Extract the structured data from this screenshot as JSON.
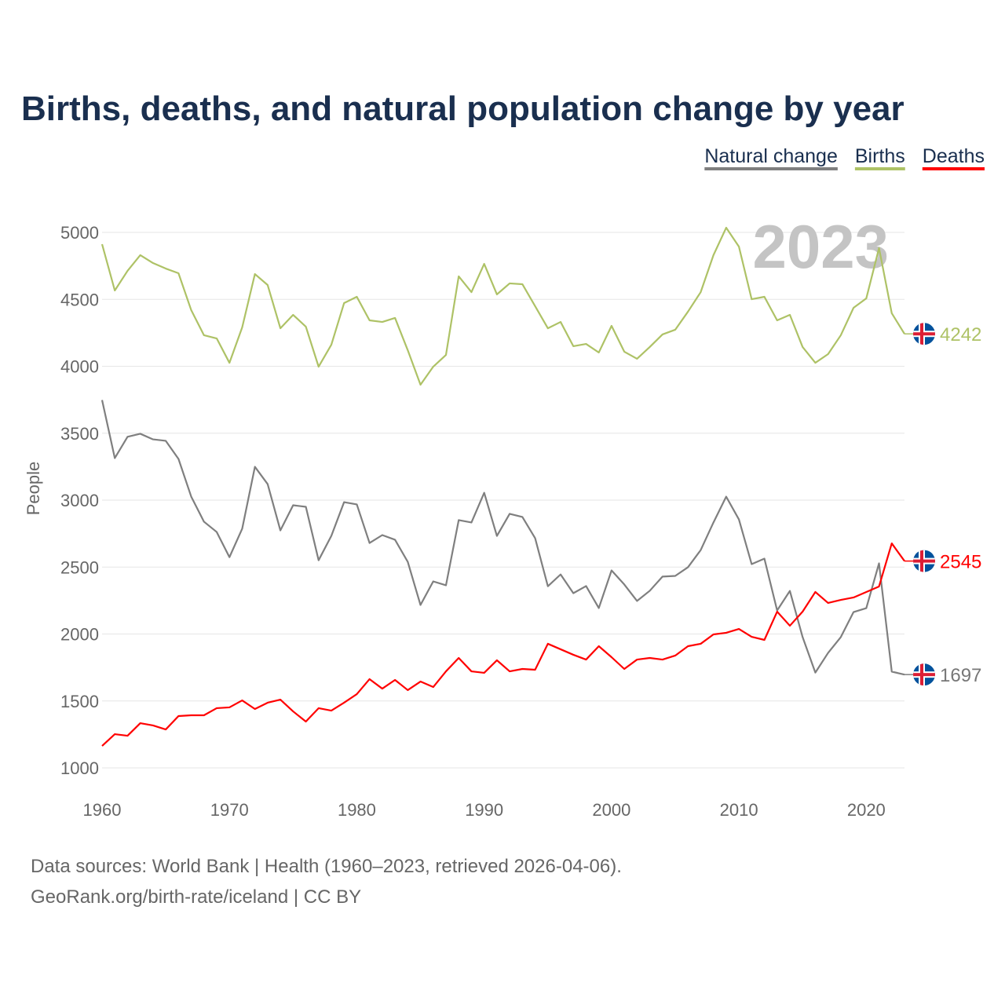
{
  "chart_data": {
    "type": "line",
    "title": "Births, deaths, and natural population change by year",
    "xlabel": "",
    "ylabel": "People",
    "xlim": [
      1960,
      2023
    ],
    "ylim": [
      1000,
      5000
    ],
    "x_ticks": [
      "1960",
      "1970",
      "1980",
      "1990",
      "2000",
      "2010",
      "2020"
    ],
    "y_ticks": [
      "1000",
      "1500",
      "2000",
      "2500",
      "3000",
      "3500",
      "4000",
      "4500",
      "5000"
    ],
    "grid": true,
    "legend_position": "top-right",
    "current_year_label": "2023",
    "x": [
      1960,
      1961,
      1962,
      1963,
      1964,
      1965,
      1966,
      1967,
      1968,
      1969,
      1970,
      1971,
      1972,
      1973,
      1974,
      1975,
      1976,
      1977,
      1978,
      1979,
      1980,
      1981,
      1982,
      1983,
      1984,
      1985,
      1986,
      1987,
      1988,
      1989,
      1990,
      1991,
      1992,
      1993,
      1994,
      1995,
      1996,
      1997,
      1998,
      1999,
      2000,
      2001,
      2002,
      2003,
      2004,
      2005,
      2006,
      2007,
      2008,
      2009,
      2010,
      2011,
      2012,
      2013,
      2014,
      2015,
      2016,
      2017,
      2018,
      2019,
      2020,
      2021,
      2022,
      2023
    ],
    "series": [
      {
        "name": "Natural change",
        "color": "#7f7f7f",
        "end_label": "1697",
        "values": [
          3748,
          3314,
          3473,
          3496,
          3454,
          3443,
          3308,
          3026,
          2839,
          2762,
          2574,
          2786,
          3249,
          3120,
          2774,
          2962,
          2950,
          2551,
          2733,
          2985,
          2968,
          2680,
          2739,
          2704,
          2539,
          2217,
          2393,
          2364,
          2851,
          2833,
          3055,
          2733,
          2898,
          2874,
          2716,
          2357,
          2445,
          2305,
          2358,
          2194,
          2475,
          2370,
          2247,
          2323,
          2429,
          2434,
          2499,
          2627,
          2833,
          3026,
          2856,
          2522,
          2563,
          2176,
          2322,
          1977,
          1712,
          1859,
          1977,
          2164,
          2193,
          2528,
          1719,
          1697
        ]
      },
      {
        "name": "Births",
        "color": "#aec266",
        "end_label": "4242",
        "values": [
          4912,
          4566,
          4713,
          4830,
          4771,
          4730,
          4695,
          4419,
          4232,
          4208,
          4026,
          4290,
          4689,
          4607,
          4284,
          4384,
          4296,
          3997,
          4161,
          4472,
          4519,
          4343,
          4331,
          4361,
          4120,
          3862,
          3997,
          4085,
          4672,
          4554,
          4765,
          4537,
          4619,
          4613,
          4449,
          4284,
          4331,
          4150,
          4167,
          4103,
          4302,
          4109,
          4056,
          4144,
          4238,
          4273,
          4408,
          4554,
          4830,
          5035,
          4894,
          4501,
          4519,
          4343,
          4384,
          4144,
          4026,
          4091,
          4232,
          4437,
          4507,
          4883,
          4396,
          4242
        ]
      },
      {
        "name": "Deaths",
        "color": "#ff0000",
        "end_label": "2545",
        "values": [
          1164,
          1252,
          1240,
          1334,
          1317,
          1287,
          1387,
          1393,
          1393,
          1446,
          1452,
          1504,
          1440,
          1487,
          1510,
          1422,
          1346,
          1446,
          1428,
          1487,
          1551,
          1663,
          1592,
          1657,
          1581,
          1645,
          1604,
          1721,
          1821,
          1721,
          1710,
          1804,
          1721,
          1739,
          1733,
          1927,
          1886,
          1845,
          1809,
          1909,
          1827,
          1739,
          1809,
          1821,
          1809,
          1839,
          1909,
          1927,
          1997,
          2009,
          2038,
          1979,
          1956,
          2167,
          2062,
          2167,
          2314,
          2232,
          2255,
          2273,
          2314,
          2355,
          2677,
          2545
        ]
      }
    ]
  },
  "footer": {
    "source_line": "Data sources: World Bank | Health (1960–2023, retrieved 2026-04-06).",
    "credit_line": "GeoRank.org/birth-rate/iceland | CC BY"
  }
}
